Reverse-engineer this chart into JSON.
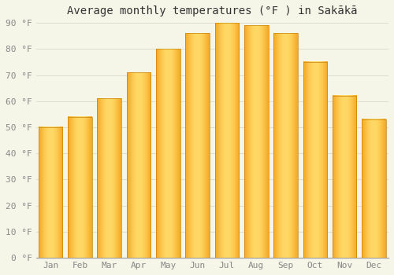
{
  "title": "Average monthly temperatures (°F ) in Sakākā",
  "months": [
    "Jan",
    "Feb",
    "Mar",
    "Apr",
    "May",
    "Jun",
    "Jul",
    "Aug",
    "Sep",
    "Oct",
    "Nov",
    "Dec"
  ],
  "temperatures": [
    50,
    54,
    61,
    71,
    80,
    86,
    90,
    89,
    86,
    75,
    62,
    53
  ],
  "ylim": [
    0,
    90
  ],
  "yticks": [
    0,
    10,
    20,
    30,
    40,
    50,
    60,
    70,
    80,
    90
  ],
  "ytick_labels": [
    "0 °F",
    "10 °F",
    "20 °F",
    "30 °F",
    "40 °F",
    "50 °F",
    "60 °F",
    "70 °F",
    "80 °F",
    "90 °F"
  ],
  "bar_color_center": "#FFD966",
  "bar_color_edge": "#F5A623",
  "background_color": "#F5F5E8",
  "plot_bg_color": "#F5F5E8",
  "grid_color": "#DDDDCC",
  "title_fontsize": 10,
  "tick_fontsize": 8,
  "bar_width": 0.82
}
